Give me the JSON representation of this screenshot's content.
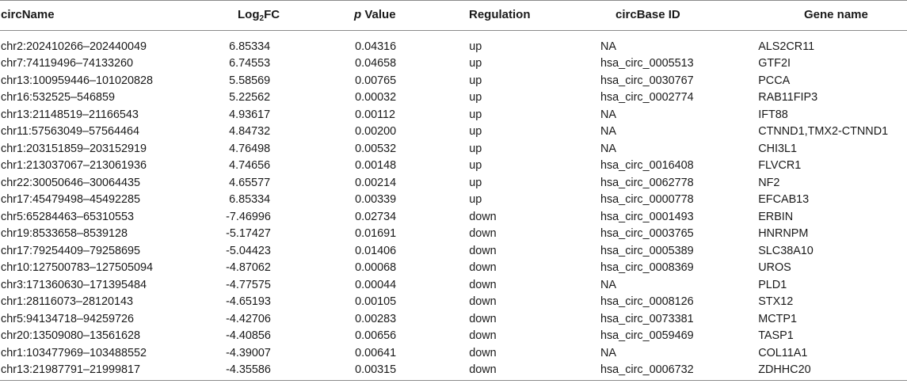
{
  "table": {
    "headers": {
      "circname": "circName",
      "log2fc_base": "Log",
      "log2fc_sub": "2",
      "log2fc_tail": "FC",
      "pvalue_p": "p",
      "pvalue_tail": " Value",
      "regulation": "Regulation",
      "circbase": "circBase ID",
      "gene": "Gene name"
    },
    "rows": [
      {
        "circname": "chr2:202410266–202440049",
        "log2fc": "6.85334",
        "pvalue": "0.04316",
        "regulation": "up",
        "circbase": "NA",
        "gene": "ALS2CR11"
      },
      {
        "circname": "chr7:74119496–74133260",
        "log2fc": "6.74553",
        "pvalue": "0.04658",
        "regulation": "up",
        "circbase": "hsa_circ_0005513",
        "gene": "GTF2I"
      },
      {
        "circname": "chr13:100959446–101020828",
        "log2fc": "5.58569",
        "pvalue": "0.00765",
        "regulation": "up",
        "circbase": "hsa_circ_0030767",
        "gene": "PCCA"
      },
      {
        "circname": "chr16:532525–546859",
        "log2fc": "5.22562",
        "pvalue": "0.00032",
        "regulation": "up",
        "circbase": "hsa_circ_0002774",
        "gene": "RAB11FIP3"
      },
      {
        "circname": "chr13:21148519–21166543",
        "log2fc": "4.93617",
        "pvalue": "0.00112",
        "regulation": "up",
        "circbase": "NA",
        "gene": "IFT88"
      },
      {
        "circname": "chr11:57563049–57564464",
        "log2fc": "4.84732",
        "pvalue": "0.00200",
        "regulation": "up",
        "circbase": "NA",
        "gene": "CTNND1,TMX2-CTNND1"
      },
      {
        "circname": "chr1:203151859–203152919",
        "log2fc": "4.76498",
        "pvalue": "0.00532",
        "regulation": "up",
        "circbase": "NA",
        "gene": "CHI3L1"
      },
      {
        "circname": "chr1:213037067–213061936",
        "log2fc": "4.74656",
        "pvalue": "0.00148",
        "regulation": "up",
        "circbase": "hsa_circ_0016408",
        "gene": "FLVCR1"
      },
      {
        "circname": "chr22:30050646–30064435",
        "log2fc": "4.65577",
        "pvalue": "0.00214",
        "regulation": "up",
        "circbase": "hsa_circ_0062778",
        "gene": "NF2"
      },
      {
        "circname": "chr17:45479498–45492285",
        "log2fc": "6.85334",
        "pvalue": "0.00339",
        "regulation": "up",
        "circbase": "hsa_circ_0000778",
        "gene": "EFCAB13"
      },
      {
        "circname": "chr5:65284463–65310553",
        "log2fc": "-7.46996",
        "pvalue": "0.02734",
        "regulation": "down",
        "circbase": "hsa_circ_0001493",
        "gene": "ERBIN"
      },
      {
        "circname": "chr19:8533658–8539128",
        "log2fc": "-5.17427",
        "pvalue": "0.01691",
        "regulation": "down",
        "circbase": "hsa_circ_0003765",
        "gene": "HNRNPM"
      },
      {
        "circname": "chr17:79254409–79258695",
        "log2fc": "-5.04423",
        "pvalue": "0.01406",
        "regulation": "down",
        "circbase": "hsa_circ_0005389",
        "gene": "SLC38A10"
      },
      {
        "circname": "chr10:127500783–127505094",
        "log2fc": "-4.87062",
        "pvalue": "0.00068",
        "regulation": "down",
        "circbase": "hsa_circ_0008369",
        "gene": "UROS"
      },
      {
        "circname": "chr3:171360630–171395484",
        "log2fc": "-4.77575",
        "pvalue": "0.00044",
        "regulation": "down",
        "circbase": "NA",
        "gene": "PLD1"
      },
      {
        "circname": "chr1:28116073–28120143",
        "log2fc": "-4.65193",
        "pvalue": "0.00105",
        "regulation": "down",
        "circbase": "hsa_circ_0008126",
        "gene": "STX12"
      },
      {
        "circname": "chr5:94134718–94259726",
        "log2fc": "-4.42706",
        "pvalue": "0.00283",
        "regulation": "down",
        "circbase": "hsa_circ_0073381",
        "gene": "MCTP1"
      },
      {
        "circname": "chr20:13509080–13561628",
        "log2fc": "-4.40856",
        "pvalue": "0.00656",
        "regulation": "down",
        "circbase": "hsa_circ_0059469",
        "gene": "TASP1"
      },
      {
        "circname": "chr1:103477969–103488552",
        "log2fc": "-4.39007",
        "pvalue": "0.00641",
        "regulation": "down",
        "circbase": "NA",
        "gene": "COL11A1"
      },
      {
        "circname": "chr13:21987791–21999817",
        "log2fc": "-4.35586",
        "pvalue": "0.00315",
        "regulation": "down",
        "circbase": "hsa_circ_0006732",
        "gene": "ZDHHC20"
      }
    ]
  }
}
